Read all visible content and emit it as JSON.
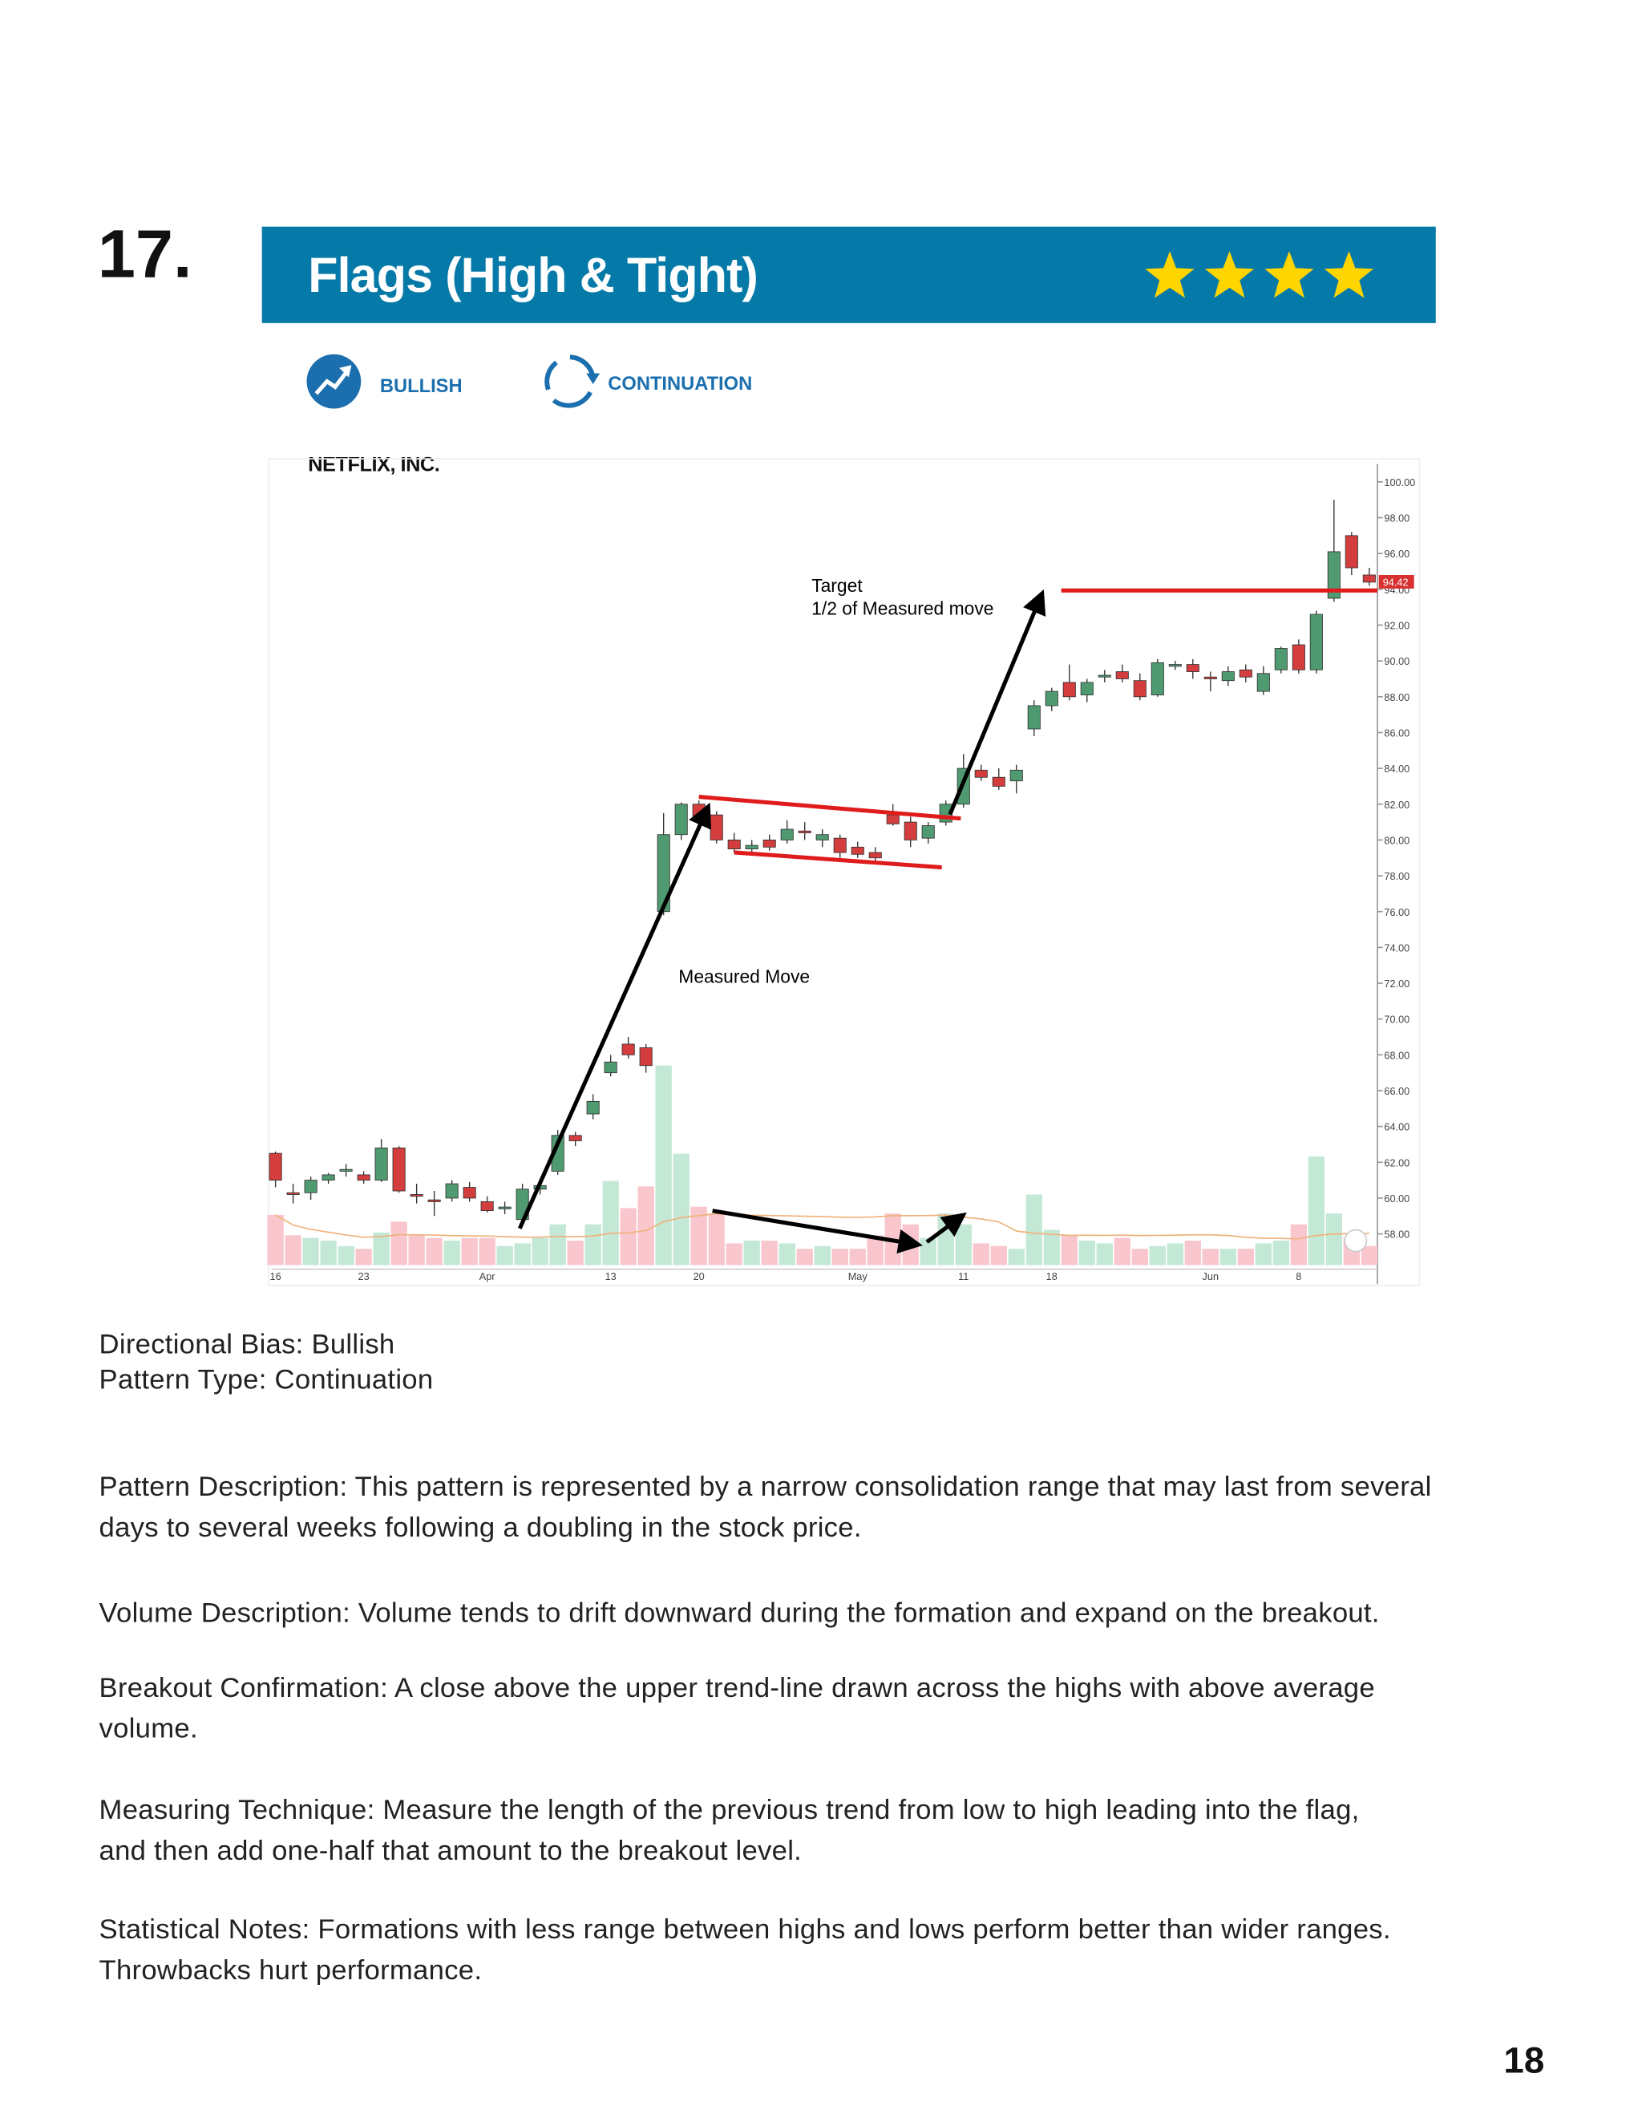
{
  "number": "17.",
  "banner": {
    "title": "Flags (High & Tight)",
    "rating": 4
  },
  "tags": [
    "BULLISH",
    "CONTINUATION"
  ],
  "chart_data": {
    "type": "candlestick",
    "title": "NETFLIX, INC.",
    "categories": [
      "16",
      null,
      null,
      null,
      null,
      "23",
      null,
      null,
      null,
      null,
      null,
      null,
      "Apr",
      null,
      null,
      null,
      null,
      null,
      null,
      "13",
      null,
      null,
      null,
      null,
      "20",
      null,
      null,
      null,
      null,
      null,
      null,
      null,
      null,
      "May",
      null,
      null,
      null,
      null,
      null,
      "11",
      null,
      null,
      null,
      null,
      "18",
      null,
      null,
      null,
      null,
      null,
      null,
      null,
      null,
      "Jun",
      null,
      null,
      null,
      null,
      "8",
      null,
      null,
      null,
      null
    ],
    "open": [
      62.5,
      60.3,
      60.3,
      61.0,
      61.5,
      61.3,
      61.0,
      62.8,
      60.2,
      59.9,
      60.0,
      60.6,
      59.8,
      59.4,
      58.8,
      60.5,
      61.5,
      63.5,
      64.7,
      67.0,
      68.6,
      68.4,
      76.0,
      80.3,
      82.0,
      81.4,
      80.0,
      79.5,
      80.0,
      80.0,
      80.5,
      80.0,
      80.1,
      79.6,
      79.3,
      81.4,
      81.0,
      80.1,
      81.0,
      82.0,
      83.9,
      83.5,
      83.3,
      86.2,
      87.5,
      88.8,
      88.1,
      89.1,
      89.4,
      88.9,
      88.1,
      89.7,
      89.8,
      89.1,
      88.9,
      89.5,
      88.3,
      89.5,
      90.9,
      89.5,
      93.5,
      97.0,
      94.8
    ],
    "high": [
      62.6,
      60.8,
      61.2,
      61.4,
      61.9,
      61.5,
      63.3,
      62.9,
      60.8,
      60.4,
      61.0,
      60.9,
      60.1,
      59.8,
      60.8,
      61.0,
      63.8,
      63.7,
      65.8,
      68.0,
      69.0,
      68.6,
      81.5,
      82.1,
      82.2,
      81.6,
      80.4,
      80.0,
      80.3,
      81.1,
      81.0,
      80.6,
      80.3,
      79.9,
      79.6,
      82.0,
      81.3,
      81.0,
      82.2,
      84.8,
      84.2,
      84.0,
      84.2,
      87.8,
      88.5,
      89.8,
      89.0,
      89.5,
      89.8,
      89.3,
      90.1,
      90.0,
      90.1,
      89.4,
      89.7,
      89.8,
      89.7,
      90.8,
      91.2,
      92.8,
      99.0,
      97.2,
      95.2
    ],
    "low": [
      60.6,
      59.7,
      59.9,
      60.8,
      61.2,
      60.8,
      60.9,
      60.3,
      59.7,
      59.0,
      59.8,
      59.8,
      59.2,
      59.1,
      58.5,
      60.2,
      61.3,
      62.9,
      64.4,
      66.8,
      67.8,
      67.0,
      75.8,
      80.0,
      81.0,
      79.8,
      79.3,
      79.3,
      79.4,
      79.8,
      80.0,
      79.6,
      79.0,
      79.0,
      78.8,
      80.8,
      79.6,
      79.8,
      80.8,
      81.8,
      83.3,
      82.8,
      82.6,
      85.8,
      87.2,
      87.8,
      87.7,
      88.8,
      88.8,
      87.8,
      88.0,
      89.5,
      89.0,
      88.3,
      88.6,
      88.8,
      88.1,
      89.3,
      89.3,
      89.3,
      93.3,
      94.8,
      94.2
    ],
    "close": [
      61.0,
      60.2,
      61.0,
      61.3,
      61.6,
      61.0,
      62.8,
      60.4,
      60.1,
      59.8,
      60.8,
      60.0,
      59.3,
      59.5,
      60.5,
      60.7,
      63.5,
      63.2,
      65.4,
      67.6,
      68.0,
      67.4,
      80.3,
      82.0,
      81.2,
      80.0,
      79.5,
      79.7,
      79.6,
      80.6,
      80.4,
      80.3,
      79.3,
      79.2,
      79.0,
      80.9,
      80.0,
      80.8,
      82.0,
      84.0,
      83.5,
      83.0,
      83.9,
      87.5,
      88.3,
      88.0,
      88.8,
      89.2,
      89.0,
      88.0,
      89.9,
      89.8,
      89.4,
      89.0,
      89.4,
      89.1,
      89.3,
      90.7,
      89.5,
      92.6,
      96.1,
      95.2,
      94.4
    ],
    "volume": [
      37,
      22,
      20,
      18,
      14,
      12,
      24,
      32,
      22,
      20,
      18,
      20,
      20,
      14,
      16,
      20,
      30,
      18,
      30,
      62,
      42,
      58,
      147,
      82,
      43,
      38,
      16,
      18,
      18,
      16,
      12,
      14,
      12,
      12,
      22,
      38,
      30,
      20,
      38,
      30,
      16,
      14,
      12,
      52,
      26,
      22,
      18,
      16,
      20,
      12,
      14,
      16,
      18,
      12,
      12,
      12,
      16,
      18,
      30,
      80,
      38,
      20,
      14
    ],
    "up_color": "#4f9a70",
    "down_color": "#d43d3d",
    "volume_up_color": "#c3e8d6",
    "volume_down_color": "#f8c6cc",
    "ylim": [
      56,
      101
    ],
    "yticks": [
      {
        "value": 58,
        "label": "58.00"
      },
      {
        "value": 60,
        "label": "60.00"
      },
      {
        "value": 62,
        "label": "62.00"
      },
      {
        "value": 64,
        "label": "64.00"
      },
      {
        "value": 66,
        "label": "66.00"
      },
      {
        "value": 68,
        "label": "68.00"
      },
      {
        "value": 70,
        "label": "70.00"
      },
      {
        "value": 72,
        "label": "72.00"
      },
      {
        "value": 74,
        "label": "74.00"
      },
      {
        "value": 76,
        "label": "76.00"
      },
      {
        "value": 78,
        "label": "78.00"
      },
      {
        "value": 80,
        "label": "80.00"
      },
      {
        "value": 82,
        "label": "82.00"
      },
      {
        "value": 84,
        "label": "84.00"
      },
      {
        "value": 86,
        "label": "86.00"
      },
      {
        "value": 88,
        "label": "88.00"
      },
      {
        "value": 90,
        "label": "90.00"
      },
      {
        "value": 92,
        "label": "92.00"
      },
      {
        "value": 94,
        "label": "94.00"
      },
      {
        "value": 96,
        "label": "96.00"
      },
      {
        "value": 98,
        "label": "98.00"
      },
      {
        "value": 100,
        "label": "100.00"
      }
    ],
    "last_price": {
      "value": 94.42,
      "label": "94.42"
    },
    "annotations": [
      "Target",
      "1/2 of Measured move",
      "Measured Move"
    ]
  },
  "body": [
    {
      "lines": [
        "Directional Bias: Bullish",
        "Pattern Type: Continuation"
      ]
    },
    {
      "lines": [
        "Pattern Description: This pattern is represented by a narrow consolidation range that may last from several",
        "days to several weeks following a doubling in the stock price."
      ]
    },
    {
      "lines": [
        "Volume Description: Volume tends to drift downward during the formation and expand on the breakout."
      ]
    },
    {
      "lines": [
        "Breakout Confirmation: A close above the upper trend-line drawn across the highs with above average",
        "volume."
      ]
    },
    {
      "lines": [
        "Measuring Technique: Measure the length of the previous trend from low to high leading into the flag,",
        "and then add one-half that amount to the breakout level."
      ]
    },
    {
      "lines": [
        "Statistical Notes: Formations with less range between highs and lows perform better than wider ranges.",
        "Throwbacks hurt performance."
      ]
    }
  ],
  "page_number": "18"
}
